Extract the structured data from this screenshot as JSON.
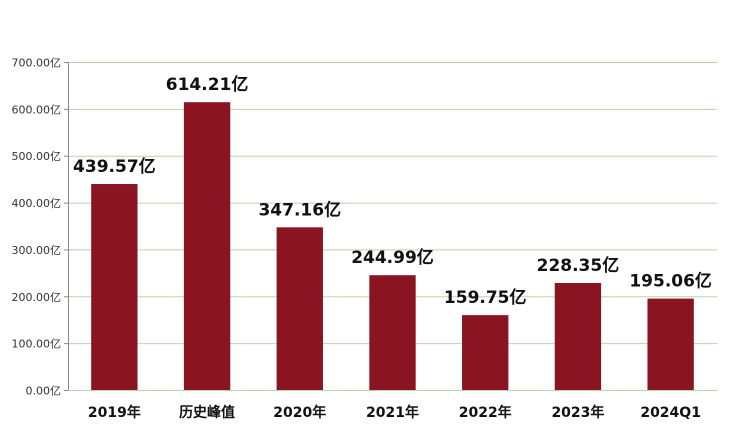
{
  "chart_data": {
    "type": "bar",
    "categories": [
      "2019年",
      "历史峰值",
      "2020年",
      "2021年",
      "2022年",
      "2023年",
      "2024Q1"
    ],
    "values": [
      439.57,
      614.21,
      347.16,
      244.99,
      159.75,
      228.35,
      195.06
    ],
    "data_labels": [
      "439.57亿",
      "614.21亿",
      "347.16亿",
      "244.99亿",
      "159.75亿",
      "228.35亿",
      "195.06亿"
    ],
    "yticks": [
      0,
      100,
      200,
      300,
      400,
      500,
      600,
      700
    ],
    "ytick_labels": [
      "0.00亿",
      "100.00亿",
      "200.00亿",
      "300.00亿",
      "400.00亿",
      "500.00亿",
      "600.00亿",
      "700.00亿"
    ],
    "ylim": [
      0,
      700
    ],
    "title": "",
    "xlabel": "",
    "ylabel": "",
    "grid": true,
    "bar_color": "#8B1422",
    "grid_color": "#B5D8A6"
  }
}
